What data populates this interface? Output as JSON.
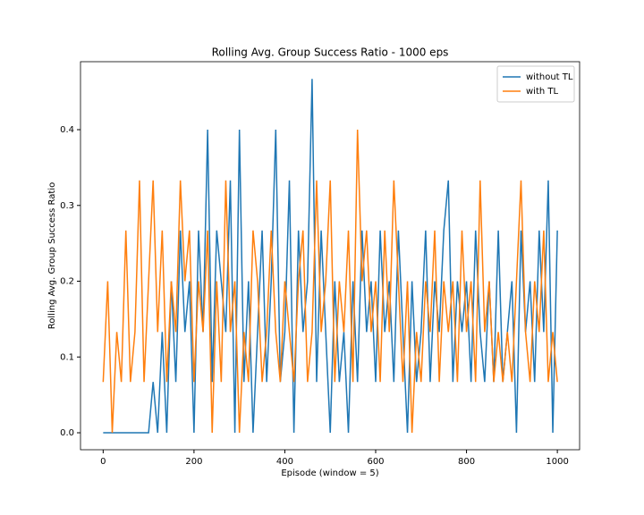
{
  "chart_data": {
    "type": "line",
    "title": "Rolling Avg. Group Success Ratio - 1000 eps",
    "x_label": "Episode (window = 5)",
    "y_label": "Rolling Avg. Group Success Ratio",
    "x": [
      0,
      10,
      20,
      30,
      40,
      50,
      60,
      70,
      80,
      90,
      100,
      110,
      120,
      130,
      140,
      150,
      160,
      170,
      180,
      190,
      200,
      210,
      220,
      230,
      240,
      250,
      260,
      270,
      280,
      290,
      300,
      310,
      320,
      330,
      340,
      350,
      360,
      370,
      380,
      390,
      400,
      410,
      420,
      430,
      440,
      450,
      460,
      470,
      480,
      490,
      500,
      510,
      520,
      530,
      540,
      550,
      560,
      570,
      580,
      590,
      600,
      610,
      620,
      630,
      640,
      650,
      660,
      670,
      680,
      690,
      700,
      710,
      720,
      730,
      740,
      750,
      760,
      770,
      780,
      790,
      800,
      810,
      820,
      830,
      840,
      850,
      860,
      870,
      880,
      890,
      900,
      910,
      920,
      930,
      940,
      950,
      960,
      970,
      980,
      990,
      1000
    ],
    "series": [
      {
        "name": "without TL",
        "color": "#1f77b4",
        "values": [
          0,
          0,
          0,
          0,
          0,
          0,
          0,
          0,
          0,
          0,
          0,
          0.067,
          0,
          0.133,
          0,
          0.2,
          0.067,
          0.267,
          0.133,
          0.2,
          0,
          0.267,
          0.133,
          0.4,
          0.067,
          0.267,
          0.2,
          0.133,
          0.333,
          0,
          0.4,
          0.067,
          0.2,
          0,
          0.133,
          0.267,
          0.067,
          0.2,
          0.4,
          0.067,
          0.133,
          0.333,
          0,
          0.267,
          0.133,
          0.2,
          0.467,
          0.067,
          0.267,
          0.133,
          0,
          0.2,
          0.067,
          0.133,
          0,
          0.2,
          0.067,
          0.267,
          0.133,
          0.2,
          0.067,
          0.267,
          0.133,
          0.2,
          0.067,
          0.267,
          0.133,
          0,
          0.2,
          0.067,
          0.133,
          0.267,
          0.067,
          0.2,
          0.133,
          0.267,
          0.333,
          0.067,
          0.2,
          0.133,
          0.2,
          0.067,
          0.267,
          0.133,
          0.067,
          0.2,
          0.067,
          0.267,
          0.067,
          0.133,
          0.2,
          0,
          0.267,
          0.133,
          0.2,
          0.067,
          0.267,
          0.133,
          0.333,
          0,
          0.267
        ]
      },
      {
        "name": "with TL",
        "color": "#ff7f0e",
        "values": [
          0.067,
          0.2,
          0,
          0.133,
          0.067,
          0.267,
          0.067,
          0.133,
          0.333,
          0.067,
          0.2,
          0.333,
          0.133,
          0.267,
          0.067,
          0.2,
          0.133,
          0.333,
          0.2,
          0.267,
          0.067,
          0.2,
          0.133,
          0.267,
          0,
          0.2,
          0.067,
          0.333,
          0.133,
          0.2,
          0,
          0.133,
          0.067,
          0.267,
          0.2,
          0.067,
          0.133,
          0.267,
          0.133,
          0.067,
          0.2,
          0.133,
          0.067,
          0.2,
          0.267,
          0.067,
          0.133,
          0.333,
          0.133,
          0.2,
          0.333,
          0.067,
          0.2,
          0.133,
          0.267,
          0.067,
          0.4,
          0.2,
          0.267,
          0.133,
          0.2,
          0.067,
          0.267,
          0.133,
          0.333,
          0.2,
          0.067,
          0.2,
          0,
          0.133,
          0.067,
          0.2,
          0.133,
          0.267,
          0.067,
          0.2,
          0.133,
          0.2,
          0.067,
          0.267,
          0.133,
          0.2,
          0.067,
          0.333,
          0.133,
          0.2,
          0.067,
          0.133,
          0.067,
          0.133,
          0.067,
          0.2,
          0.333,
          0.133,
          0.067,
          0.2,
          0.133,
          0.267,
          0.067,
          0.133,
          0.067
        ]
      }
    ],
    "xlim": [
      -49.9,
      1049
    ],
    "ylim": [
      -0.0224,
      0.4897
    ],
    "xticks": [
      0,
      200,
      400,
      600,
      800,
      1000
    ],
    "yticks": [
      {
        "value": 0,
        "label": "0.0"
      },
      0.1,
      0.2,
      0.3,
      0.4
    ],
    "legend": "upper right"
  }
}
